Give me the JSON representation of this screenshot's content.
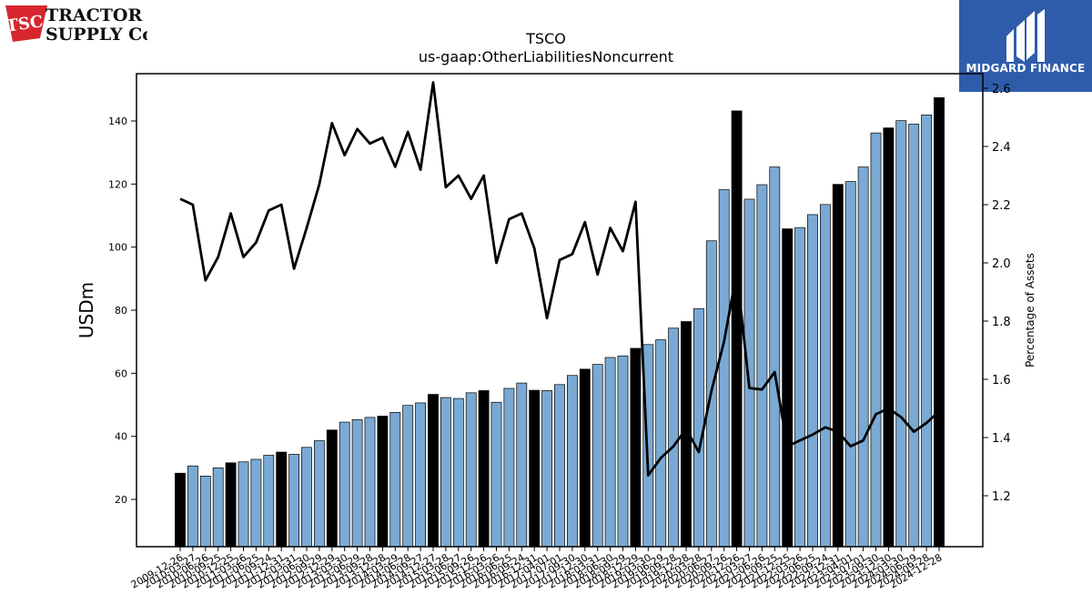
{
  "brand": {
    "left_logo_mark": "TSC",
    "left_logo_line1": "TRACTOR",
    "left_logo_line2": "SUPPLY Co",
    "right_logo_text": "MIDGARD FINANCE",
    "colors": {
      "tsc_red": "#d7262d",
      "midgard_blue": "#2f5caa"
    }
  },
  "chart_data": {
    "type": "bar",
    "title": "TSCO",
    "subtitle": "us-gaap:OtherLiabilitiesNoncurrent",
    "ylabel": "USDm",
    "y2label": "Percentage of Assets",
    "ylim": [
      5,
      155
    ],
    "y2lim": [
      1.025,
      2.65
    ],
    "yticks": [
      20,
      40,
      60,
      80,
      100,
      120,
      140
    ],
    "y2ticks": [
      1.2,
      1.4,
      1.6,
      1.8,
      2.0,
      2.2,
      2.4,
      2.6
    ],
    "colors": {
      "bar_annual": "#000000",
      "bar_quarterly": "#7aaad4",
      "bar_edge": "#000000",
      "line": "#000000"
    },
    "categories": [
      "2009-12-26",
      "2010-03-27",
      "2010-06-26",
      "2010-09-25",
      "2010-12-25",
      "2011-03-26",
      "2011-06-25",
      "2011-09-24",
      "2011-12-31",
      "2012-03-31",
      "2012-06-30",
      "2012-09-29",
      "2012-12-29",
      "2013-03-30",
      "2013-06-29",
      "2013-09-28",
      "2013-12-28",
      "2014-03-29",
      "2014-06-28",
      "2014-09-27",
      "2014-12-27",
      "2015-03-28",
      "2015-06-27",
      "2015-09-26",
      "2015-12-26",
      "2016-03-26",
      "2016-06-25",
      "2016-09-24",
      "2016-12-31",
      "2017-04-01",
      "2017-07-01",
      "2017-09-30",
      "2017-12-30",
      "2018-03-31",
      "2018-06-30",
      "2018-09-29",
      "2018-12-29",
      "2019-03-30",
      "2019-06-29",
      "2019-09-28",
      "2019-12-28",
      "2020-03-28",
      "2020-06-27",
      "2020-09-26",
      "2020-12-26",
      "2021-03-27",
      "2021-06-26",
      "2021-09-25",
      "2021-12-25",
      "2022-03-26",
      "2022-06-25",
      "2022-09-24",
      "2022-12-31",
      "2023-04-01",
      "2023-07-01",
      "2023-09-30",
      "2023-12-30",
      "2024-03-30",
      "2024-06-29",
      "2024-09-28",
      "2024-12-28"
    ],
    "annual": [
      1,
      0,
      0,
      0,
      1,
      0,
      0,
      0,
      1,
      0,
      0,
      0,
      1,
      0,
      0,
      0,
      1,
      0,
      0,
      0,
      1,
      0,
      0,
      0,
      1,
      0,
      0,
      0,
      1,
      0,
      0,
      0,
      1,
      0,
      0,
      0,
      1,
      0,
      0,
      0,
      1,
      0,
      0,
      0,
      1,
      0,
      0,
      0,
      1,
      0,
      0,
      0,
      1,
      0,
      0,
      0,
      1,
      0,
      0,
      0,
      1
    ],
    "series": [
      {
        "kind": "bar",
        "values": [
          28.3,
          30.6,
          27.4,
          30.0,
          31.6,
          31.9,
          32.7,
          34.0,
          35.0,
          34.3,
          36.5,
          38.6,
          42.0,
          44.5,
          45.3,
          46.0,
          46.4,
          47.6,
          49.8,
          50.6,
          53.3,
          52.3,
          52.0,
          53.8,
          54.5,
          50.8,
          55.2,
          56.9,
          54.6,
          54.5,
          56.4,
          59.3,
          61.3,
          62.8,
          65.0,
          65.5,
          67.9,
          69.1,
          70.6,
          74.3,
          76.4,
          80.5,
          102.0,
          118.2,
          143.2,
          115.2,
          119.8,
          125.4,
          105.8,
          106.2,
          110.3,
          113.5,
          119.9,
          120.8,
          125.4,
          136.2,
          137.8,
          140.1,
          139.0,
          141.9,
          147.4
        ]
      },
      {
        "kind": "line",
        "axis": "right",
        "values": [
          2.22,
          2.2,
          1.94,
          2.02,
          2.17,
          2.02,
          2.07,
          2.18,
          2.2,
          1.98,
          2.12,
          2.27,
          2.48,
          2.37,
          2.46,
          2.41,
          2.43,
          2.33,
          2.45,
          2.32,
          2.62,
          2.26,
          2.3,
          2.22,
          2.3,
          2.0,
          2.15,
          2.17,
          2.05,
          1.81,
          2.01,
          2.03,
          2.14,
          1.96,
          2.12,
          2.04,
          2.21,
          1.27,
          1.33,
          1.37,
          1.43,
          1.35,
          1.56,
          1.73,
          1.97,
          1.57,
          1.565,
          1.625,
          1.37,
          1.39,
          1.41,
          1.435,
          1.42,
          1.37,
          1.39,
          1.48,
          1.5,
          1.47,
          1.42,
          1.45,
          1.49
        ]
      }
    ]
  }
}
